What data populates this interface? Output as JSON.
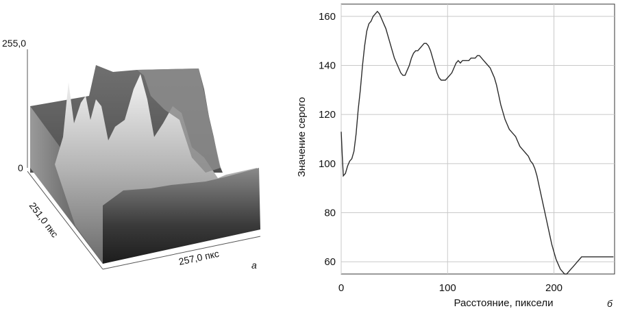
{
  "panel_a": {
    "z_max_label": "255,0",
    "z_min_label": "0",
    "y_axis_label": "251,0 пкс",
    "x_axis_label": "257,0 пкс",
    "panel_letter": "а"
  },
  "chart_data": {
    "type": "line",
    "xlabel": "Расстояние, пиксели",
    "ylabel": "Значение серого",
    "xlim": [
      0,
      257
    ],
    "ylim": [
      55,
      165
    ],
    "x_ticks": [
      "0",
      "100",
      "200"
    ],
    "y_ticks": [
      "60",
      "80",
      "100",
      "120",
      "140",
      "160"
    ],
    "grid": true,
    "panel_letter": "б",
    "series": [
      {
        "x": [
          0,
          1,
          2,
          4,
          6,
          8,
          10,
          12,
          14,
          16,
          18,
          20,
          22,
          24,
          26,
          28,
          30,
          32,
          34,
          36,
          38,
          40,
          42,
          44,
          46,
          48,
          50,
          52,
          54,
          56,
          58,
          60,
          62,
          64,
          66,
          68,
          70,
          72,
          74,
          76,
          78,
          80,
          82,
          84,
          86,
          88,
          90,
          92,
          94,
          96,
          98,
          100,
          102,
          104,
          106,
          108,
          110,
          112,
          114,
          116,
          118,
          120,
          122,
          124,
          126,
          128,
          130,
          132,
          134,
          136,
          138,
          140,
          142,
          144,
          146,
          148,
          150,
          152,
          154,
          156,
          158,
          160,
          162,
          164,
          166,
          168,
          170,
          172,
          174,
          176,
          178,
          180,
          182,
          184,
          186,
          188,
          190,
          192,
          194,
          196,
          198,
          200,
          202,
          204,
          206,
          208,
          210,
          212,
          214,
          216,
          218,
          220,
          222,
          224,
          226,
          228,
          230,
          232,
          234,
          236,
          238,
          240,
          242,
          244,
          246,
          248,
          250,
          252,
          254,
          256
        ],
        "y": [
          113,
          103,
          95,
          96,
          99,
          101,
          102,
          105,
          112,
          122,
          130,
          140,
          148,
          154,
          157,
          158,
          160,
          161,
          162,
          161,
          159,
          157,
          155,
          152,
          149,
          146,
          143,
          141,
          139,
          137,
          136,
          136,
          138,
          140,
          143,
          145,
          146,
          146,
          147,
          148,
          149,
          149,
          148,
          146,
          143,
          140,
          137,
          135,
          134,
          134,
          134,
          135,
          136,
          137,
          139,
          141,
          142,
          141,
          142,
          142,
          142,
          142,
          143,
          143,
          143,
          144,
          144,
          143,
          142,
          141,
          140,
          139,
          137,
          135,
          132,
          128,
          124,
          121,
          118,
          116,
          114,
          113,
          112,
          111,
          109,
          107,
          106,
          105,
          104,
          103,
          101,
          100,
          98,
          95,
          91,
          87,
          83,
          79,
          75,
          71,
          67,
          64,
          61,
          59,
          57,
          56,
          55,
          55,
          56,
          57,
          58,
          59,
          60,
          61,
          62,
          62,
          62,
          62,
          62,
          62,
          62,
          62,
          62,
          62,
          62,
          62,
          62,
          62,
          62,
          62
        ]
      }
    ]
  }
}
